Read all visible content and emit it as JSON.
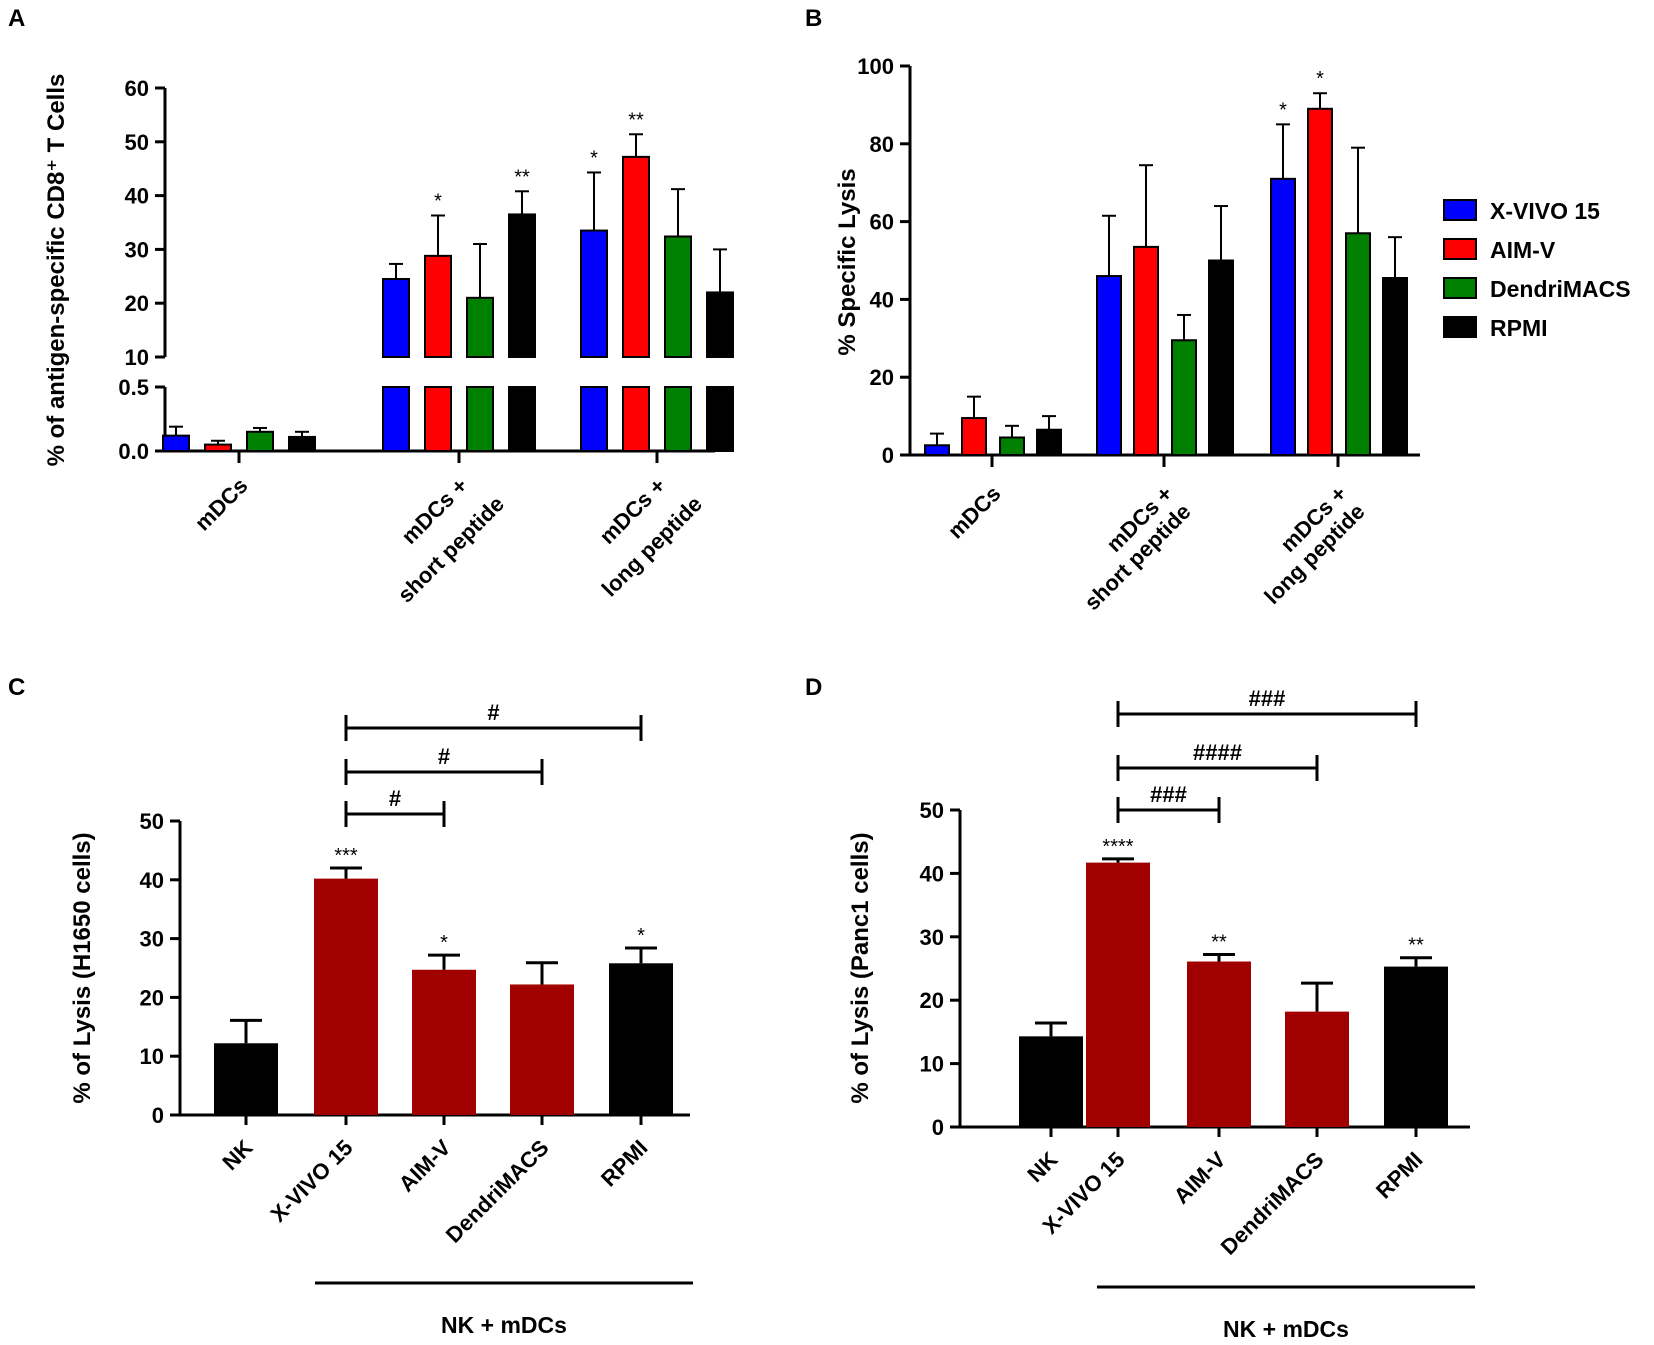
{
  "colors": {
    "X-VIVO 15": "#0000ff",
    "AIM-V": "#ff0000",
    "DendriMACS": "#008000",
    "RPMI": "#000000",
    "dark_red": "#a00000",
    "black": "#000000"
  },
  "legend": {
    "entries": [
      "X-VIVO 15",
      "AIM-V",
      "DendriMACS",
      "RPMI"
    ]
  },
  "chart_data": [
    {
      "panel": "A",
      "type": "bar",
      "ylabel": "% of antigen-specific CD8⁺ T Cells",
      "broken_axis": true,
      "lower_ylim": [
        0,
        0.5
      ],
      "lower_ticks": [
        "0.0",
        "0.5"
      ],
      "upper_ylim": [
        10,
        60
      ],
      "upper_ticks": [
        "10",
        "20",
        "30",
        "40",
        "50",
        "60"
      ],
      "categories": [
        [
          "mDCs"
        ],
        [
          "mDCs +",
          "short peptide"
        ],
        [
          "mDCs +",
          "long peptide"
        ]
      ],
      "series": [
        {
          "name": "X-VIVO 15",
          "values": [
            0.12,
            24.5,
            33.5
          ],
          "errors": [
            0.07,
            2.8,
            10.8
          ],
          "sig": [
            "",
            "",
            "*"
          ]
        },
        {
          "name": "AIM-V",
          "values": [
            0.05,
            28.8,
            47.2
          ],
          "errors": [
            0.03,
            7.5,
            4.2
          ],
          "sig": [
            "",
            "*",
            "**"
          ]
        },
        {
          "name": "DendriMACS",
          "values": [
            0.15,
            21.0,
            32.4
          ],
          "errors": [
            0.03,
            10.0,
            8.8
          ],
          "sig": [
            "",
            "",
            ""
          ]
        },
        {
          "name": "RPMI",
          "values": [
            0.11,
            36.5,
            22.0
          ],
          "errors": [
            0.04,
            4.3,
            8.0
          ],
          "sig": [
            "",
            "**",
            ""
          ]
        }
      ]
    },
    {
      "panel": "B",
      "type": "bar",
      "ylabel": "% Specific Lysis",
      "ylim": [
        0,
        100
      ],
      "ticks": [
        "0",
        "20",
        "40",
        "60",
        "80",
        "100"
      ],
      "categories": [
        [
          "mDCs"
        ],
        [
          "mDCs +",
          "short peptide"
        ],
        [
          "mDCs +",
          "long peptide"
        ]
      ],
      "series": [
        {
          "name": "X-VIVO 15",
          "values": [
            2.5,
            46,
            71
          ],
          "errors": [
            3.0,
            15.5,
            14
          ],
          "sig": [
            "",
            "",
            "*"
          ]
        },
        {
          "name": "AIM-V",
          "values": [
            9.5,
            53.5,
            89
          ],
          "errors": [
            5.5,
            21,
            4
          ],
          "sig": [
            "",
            "",
            "*"
          ]
        },
        {
          "name": "DendriMACS",
          "values": [
            4.5,
            29.5,
            57
          ],
          "errors": [
            3.0,
            6.5,
            22
          ],
          "sig": [
            "",
            "",
            ""
          ]
        },
        {
          "name": "RPMI",
          "values": [
            6.5,
            50,
            45.5
          ],
          "errors": [
            3.5,
            14,
            10.5
          ],
          "sig": [
            "",
            "",
            ""
          ]
        }
      ]
    },
    {
      "panel": "C",
      "type": "bar",
      "ylabel": "% of Lysis (H1650 cells)",
      "ylim": [
        0,
        50
      ],
      "ticks": [
        "0",
        "10",
        "20",
        "30",
        "40",
        "50"
      ],
      "categories": [
        "NK",
        "X-VIVO 15",
        "AIM-V",
        "DendriMACS",
        "RPMI"
      ],
      "values": [
        12.2,
        40.2,
        24.7,
        22.2,
        25.8
      ],
      "errors": [
        3.9,
        1.8,
        2.5,
        3.7,
        2.6
      ],
      "bar_colors": [
        "#000000",
        "#a00000",
        "#a00000",
        "#a00000",
        "#000000"
      ],
      "sig": [
        "",
        "***",
        "*",
        "",
        "*"
      ],
      "comparisons": [
        {
          "from": "X-VIVO 15",
          "to": "AIM-V",
          "label": "#"
        },
        {
          "from": "X-VIVO 15",
          "to": "DendriMACS",
          "label": "#"
        },
        {
          "from": "X-VIVO 15",
          "to": "RPMI",
          "label": "#"
        }
      ],
      "group_label": "NK + mDCs"
    },
    {
      "panel": "D",
      "type": "bar",
      "ylabel": "% of Lysis (Panc1 cells)",
      "ylim": [
        0,
        50
      ],
      "ticks": [
        "0",
        "10",
        "20",
        "30",
        "40",
        "50"
      ],
      "categories": [
        "NK",
        "X-VIVO 15",
        "AIM-V",
        "DendriMACS",
        "RPMI"
      ],
      "values": [
        14.3,
        41.7,
        26.1,
        18.2,
        25.3
      ],
      "errors": [
        2.1,
        0.6,
        1.1,
        4.5,
        1.4
      ],
      "bar_colors": [
        "#000000",
        "#a00000",
        "#a00000",
        "#a00000",
        "#000000"
      ],
      "sig": [
        "",
        "****",
        "**",
        "",
        "**"
      ],
      "comparisons": [
        {
          "from": "X-VIVO 15",
          "to": "AIM-V",
          "label": "###"
        },
        {
          "from": "X-VIVO 15",
          "to": "DendriMACS",
          "label": "####"
        },
        {
          "from": "X-VIVO 15",
          "to": "RPMI",
          "label": "###"
        }
      ],
      "group_label": "NK + mDCs"
    }
  ]
}
